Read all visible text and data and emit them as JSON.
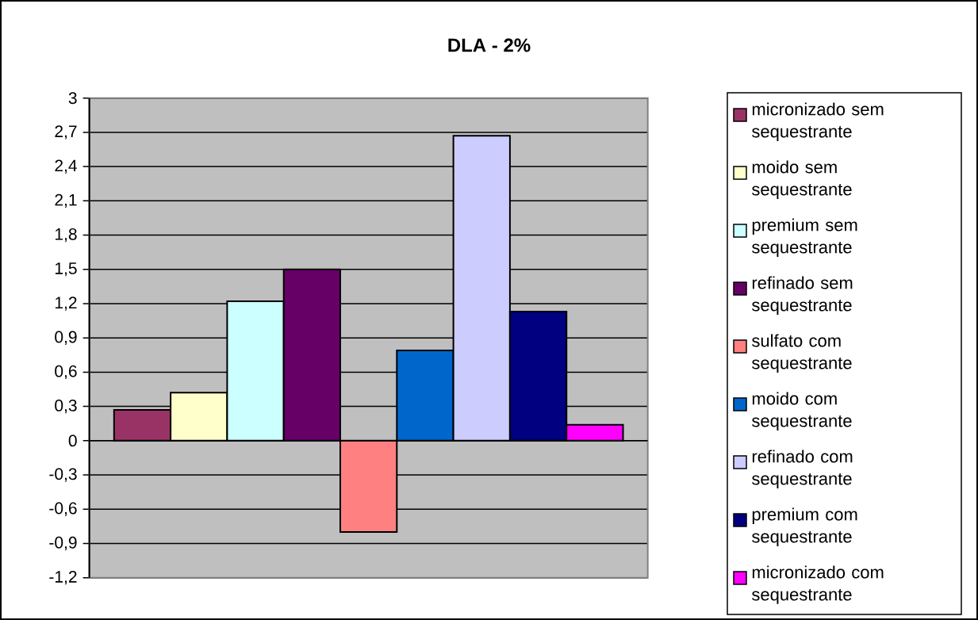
{
  "chart_data": {
    "type": "bar",
    "title": "DLA - 2%",
    "categories": [
      null
    ],
    "series": [
      {
        "name": "micronizado sem sequestrante",
        "color": "#993366",
        "values": [
          0.27
        ]
      },
      {
        "name": "moido sem sequestrante",
        "color": "#ffffcc",
        "values": [
          0.42
        ]
      },
      {
        "name": "premium sem sequestrante",
        "color": "#ccffff",
        "values": [
          1.22
        ]
      },
      {
        "name": "refinado sem sequestrante",
        "color": "#660066",
        "values": [
          1.5
        ]
      },
      {
        "name": "sulfato com sequestrante",
        "color": "#ff8080",
        "values": [
          -0.8
        ]
      },
      {
        "name": "moido com sequestrante",
        "color": "#0066cc",
        "values": [
          0.79
        ]
      },
      {
        "name": "refinado com sequestrante",
        "color": "#ccccff",
        "values": [
          2.67
        ]
      },
      {
        "name": "premium com sequestrante",
        "color": "#000080",
        "values": [
          1.13
        ]
      },
      {
        "name": "micronizado com sequestrante",
        "color": "#ff00ff",
        "values": [
          0.14
        ]
      }
    ],
    "ylim": [
      -1.2,
      3
    ],
    "yticks": [
      {
        "value": -1.2,
        "label": "-1,2"
      },
      {
        "value": -0.9,
        "label": "-0,9"
      },
      {
        "value": -0.6,
        "label": "-0,6"
      },
      {
        "value": -0.3,
        "label": "-0,3"
      },
      0,
      {
        "value": 0.3,
        "label": "0,3"
      },
      {
        "value": 0.6,
        "label": "0,6"
      },
      {
        "value": 0.9,
        "label": "0,9"
      },
      {
        "value": 1.2,
        "label": "1,2"
      },
      {
        "value": 1.5,
        "label": "1,5"
      },
      {
        "value": 1.8,
        "label": "1,8"
      },
      {
        "value": 2.1,
        "label": "2,1"
      },
      {
        "value": 2.4,
        "label": "2,4"
      },
      {
        "value": 2.7,
        "label": "2,7"
      },
      3
    ],
    "grid": "y",
    "legend": "right"
  }
}
